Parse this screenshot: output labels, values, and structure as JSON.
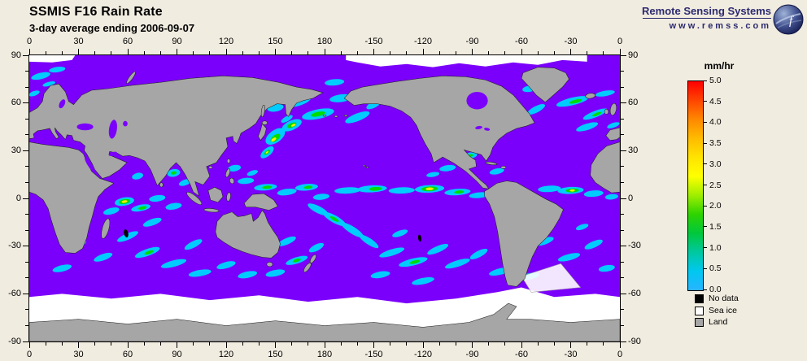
{
  "header": {
    "title": "SSMIS F16 Rain Rate",
    "subtitle": "3-day average ending 2006-09-07"
  },
  "branding": {
    "name": "Remote Sensing Systems",
    "url": "www.remss.com",
    "logo_glyph": "f"
  },
  "axes": {
    "lon_ticks": [
      "0",
      "30",
      "60",
      "90",
      "120",
      "150",
      "180",
      "-150",
      "-120",
      "-90",
      "-60",
      "-30",
      "0"
    ],
    "lat_ticks": [
      "90",
      "60",
      "30",
      "0",
      "-30",
      "-60",
      "-90"
    ]
  },
  "colorbar": {
    "unit": "mm/hr",
    "ticks": [
      "5.0",
      "4.5",
      "4.0",
      "3.5",
      "3.0",
      "2.5",
      "2.0",
      "1.5",
      "1.0",
      "0.5",
      "0.0"
    ],
    "gradient": [
      "#FF0000",
      "#FF4400",
      "#FF8800",
      "#FFBB00",
      "#FFE300",
      "#FFFF00",
      "#9FEE00",
      "#2ED300",
      "#00C83C",
      "#00C8A0",
      "#00C8F0",
      "#28B4FF"
    ]
  },
  "legend": {
    "items": [
      {
        "label": "No data",
        "color": "#000000"
      },
      {
        "label": "Sea ice",
        "color": "#FFFFFF"
      },
      {
        "label": "Land",
        "color": "#A6A6A6"
      }
    ]
  },
  "colors": {
    "background": "#F1ECE0",
    "ocean": "#7B00FB",
    "land": "#A6A6A6",
    "ice": "#FFFFFF",
    "navy": "#2B2A70"
  }
}
